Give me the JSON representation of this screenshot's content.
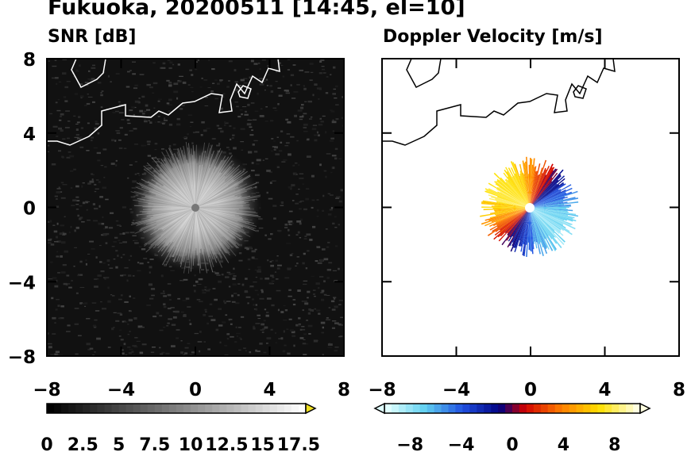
{
  "title": "Fukuoka, 20200511 [14:45, el=10]",
  "chart_data": [
    {
      "type": "heatmap",
      "title": "SNR [dB]",
      "xlim": [
        -8,
        8
      ],
      "ylim": [
        -8,
        8
      ],
      "xticks": [
        "−8",
        "−4",
        "0",
        "4",
        "8"
      ],
      "yticks": [
        "8",
        "4",
        "0",
        "−4",
        "−8"
      ],
      "colorbar": {
        "ticks": [
          "0",
          "2.5",
          "5",
          "7.5",
          "10",
          "12.5",
          "15",
          "17.5"
        ],
        "range": [
          0,
          18
        ],
        "extend": "max",
        "colors": [
          "#000000",
          "#ffffff",
          "#f0e020"
        ]
      },
      "echo_radius_km": 3,
      "background": "#111111"
    },
    {
      "type": "heatmap",
      "title": "Doppler Velocity [m/s]",
      "xlim": [
        -8,
        8
      ],
      "ylim": [
        -8,
        8
      ],
      "xticks": [
        "−8",
        "−4",
        "0",
        "4",
        "8"
      ],
      "yticks": [],
      "colorbar": {
        "ticks": [
          "−8",
          "−4",
          "0",
          "4",
          "8"
        ],
        "range": [
          -10,
          10
        ],
        "extend": "both",
        "colors": [
          "#e0ffff",
          "#60d0f0",
          "#2050e0",
          "#000080",
          "#d00000",
          "#ff8000",
          "#ffe000",
          "#ffffe0"
        ]
      },
      "echo_radius_km": 2.4,
      "background": "#ffffff"
    }
  ]
}
